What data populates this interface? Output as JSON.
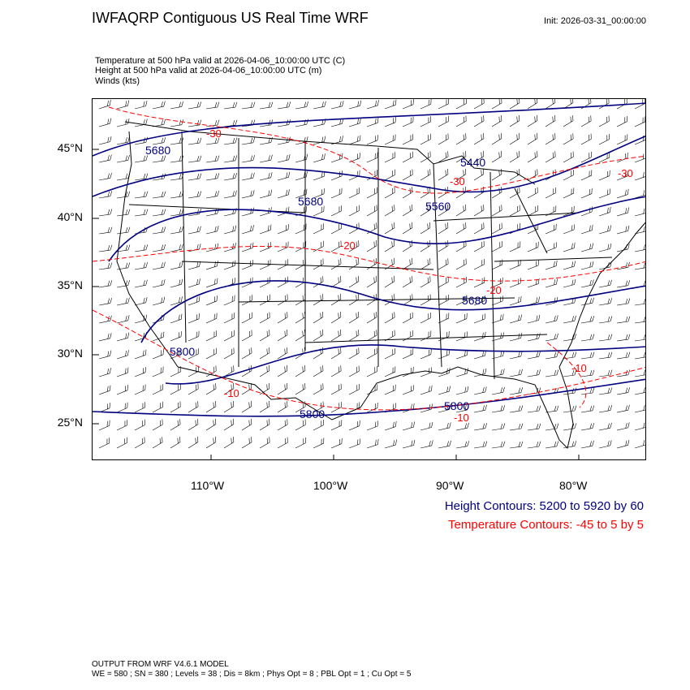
{
  "title": "IWFAQRP Contiguous US Real Time WRF",
  "init": "Init: 2026-03-31_00:00:00",
  "subtitles": [
    "Temperature at 500 hPa valid at 2026-04-06_10:00:00 UTC   (C)",
    "Height at 500 hPa valid at 2026-04-06_10:00:00 UTC   (m)",
    "Winds   (kts)"
  ],
  "lat_labels": [
    "45°N",
    "40°N",
    "35°N",
    "30°N",
    "25°N"
  ],
  "lon_labels": [
    "110°W",
    "100°W",
    "90°W",
    "80°W"
  ],
  "legend": {
    "height": "Height Contours: 5200 to 5920 by 60",
    "temperature": "Temperature Contours: -45 to 5 by 5"
  },
  "footer": {
    "line1": "OUTPUT FROM WRF V4.6.1 MODEL",
    "line2": "WE = 580 ; SN = 380 ; Levels = 38 ; Dis = 8km ; Phys Opt = 8 ; PBL Opt = 1 ; Cu Opt = 5"
  },
  "contour_labels": {
    "height": [
      "5680",
      "5440",
      "5680",
      "5560",
      "5680",
      "5800",
      "5800",
      "5800"
    ],
    "temperature": [
      "-30",
      "-30",
      "-30",
      "-20",
      "-20",
      "-10",
      "-10",
      "-10"
    ]
  },
  "colors": {
    "height": "#000080",
    "temperature": "#ff0000",
    "map_lines": "#000000"
  }
}
